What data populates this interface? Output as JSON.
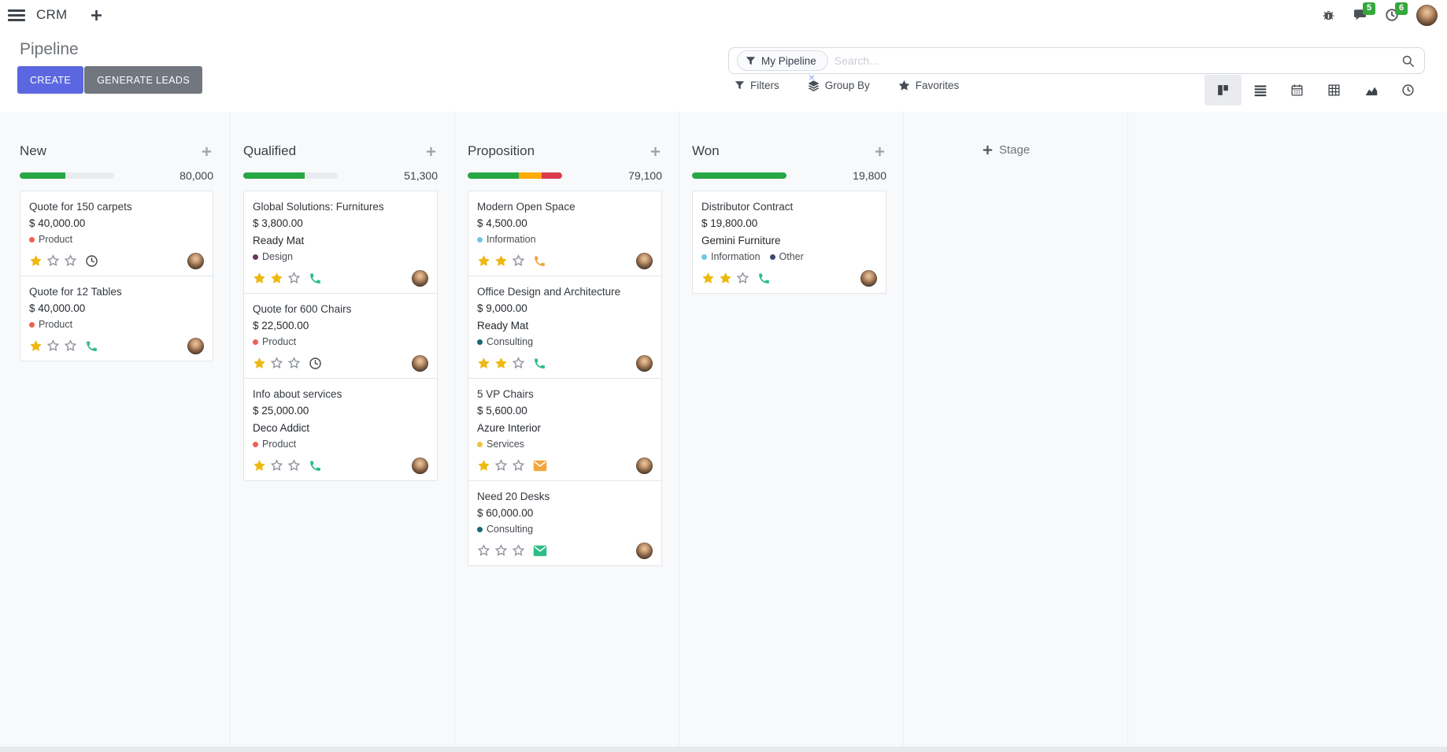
{
  "colors": {
    "accent": "#5b67e0",
    "secondary_button": "#71767f",
    "badge_green": "#35a83c",
    "progress_success": "#28a745",
    "progress_warning": "#ffac00",
    "progress_danger": "#dc3a4d",
    "star_gold": "#efb810",
    "kanban_bg": "#f8f9fb"
  },
  "navbar": {
    "app_name": "CRM",
    "message_badge": "5",
    "activity_badge": "6"
  },
  "control_panel": {
    "title": "Pipeline",
    "buttons": {
      "create": "CREATE",
      "generate_leads": "GENERATE LEADS"
    },
    "search": {
      "facet_label": "My Pipeline",
      "placeholder": "Search...",
      "remove_facet": "×"
    },
    "menus": {
      "filters": "Filters",
      "group_by": "Group By",
      "favorites": "Favorites"
    }
  },
  "kanban": {
    "add_stage_label": "Stage",
    "columns": [
      {
        "name": "New",
        "total": "80,000",
        "progress": [
          {
            "color": "#28a745",
            "pct": 48
          }
        ],
        "cards": [
          {
            "title": "Quote for 150 carpets",
            "amount": "$ 40,000.00",
            "tags": [
              {
                "label": "Product",
                "color": "#f06050"
              }
            ],
            "stars": 1,
            "activity": {
              "icon": "clock",
              "color": "#41464c"
            }
          },
          {
            "title": "Quote for 12 Tables",
            "amount": "$ 40,000.00",
            "tags": [
              {
                "label": "Product",
                "color": "#f06050"
              }
            ],
            "stars": 1,
            "activity": {
              "icon": "phone",
              "color": "#2dbd87"
            }
          }
        ]
      },
      {
        "name": "Qualified",
        "total": "51,300",
        "progress": [
          {
            "color": "#28a745",
            "pct": 65
          }
        ],
        "cards": [
          {
            "title": "Global Solutions: Furnitures",
            "amount": "$ 3,800.00",
            "partner": "Ready Mat",
            "tags": [
              {
                "label": "Design",
                "color": "#68365f"
              }
            ],
            "stars": 2,
            "activity": {
              "icon": "phone",
              "color": "#2dbd87"
            }
          },
          {
            "title": "Quote for 600 Chairs",
            "amount": "$ 22,500.00",
            "tags": [
              {
                "label": "Product",
                "color": "#f06050"
              }
            ],
            "stars": 1,
            "activity": {
              "icon": "clock",
              "color": "#41464c"
            }
          },
          {
            "title": "Info about services",
            "amount": "$ 25,000.00",
            "partner": "Deco Addict",
            "tags": [
              {
                "label": "Product",
                "color": "#f06050"
              }
            ],
            "stars": 1,
            "activity": {
              "icon": "phone",
              "color": "#2dbd87"
            }
          }
        ]
      },
      {
        "name": "Proposition",
        "total": "79,100",
        "progress": [
          {
            "color": "#28a745",
            "pct": 54
          },
          {
            "color": "#ffac00",
            "pct": 24
          },
          {
            "color": "#dc3a4d",
            "pct": 22
          }
        ],
        "cards": [
          {
            "title": "Modern Open Space",
            "amount": "$ 4,500.00",
            "tags": [
              {
                "label": "Information",
                "color": "#6fc6e5"
              }
            ],
            "stars": 2,
            "activity": {
              "icon": "phone",
              "color": "#f0a63c"
            }
          },
          {
            "title": "Office Design and Architecture",
            "amount": "$ 9,000.00",
            "partner": "Ready Mat",
            "tags": [
              {
                "label": "Consulting",
                "color": "#17696f"
              }
            ],
            "stars": 2,
            "activity": {
              "icon": "phone",
              "color": "#2dbd87"
            }
          },
          {
            "title": "5 VP Chairs",
            "amount": "$ 5,600.00",
            "partner": "Azure Interior",
            "tags": [
              {
                "label": "Services",
                "color": "#edc43c"
              }
            ],
            "stars": 1,
            "activity": {
              "icon": "mail",
              "color": "#f0a63c"
            }
          },
          {
            "title": "Need 20 Desks",
            "amount": "$ 60,000.00",
            "tags": [
              {
                "label": "Consulting",
                "color": "#17696f"
              }
            ],
            "stars": 0,
            "activity": {
              "icon": "mail",
              "color": "#2dbd87"
            }
          }
        ]
      },
      {
        "name": "Won",
        "total": "19,800",
        "progress": [
          {
            "color": "#28a745",
            "pct": 100
          }
        ],
        "cards": [
          {
            "title": "Distributor Contract",
            "amount": "$ 19,800.00",
            "partner": "Gemini Furniture",
            "tags": [
              {
                "label": "Information",
                "color": "#6fc6e5"
              },
              {
                "label": "Other",
                "color": "#3b4a68"
              }
            ],
            "stars": 2,
            "activity": {
              "icon": "phone",
              "color": "#2dbd87"
            }
          }
        ]
      }
    ]
  }
}
